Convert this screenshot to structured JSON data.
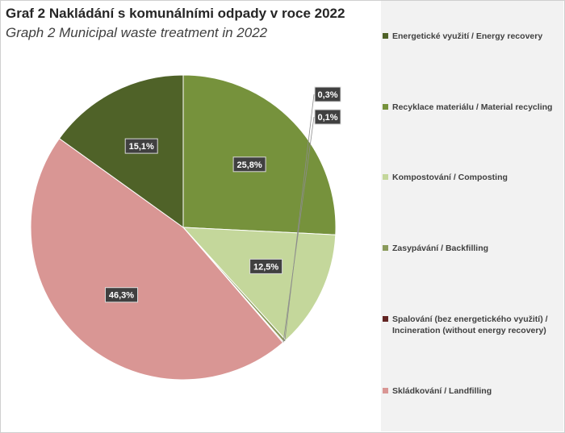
{
  "title": "Graf 2 Nakládání s komunálními odpady v roce 2022",
  "subtitle": "Graph 2 Municipal waste treatment  in 2022",
  "chart_data": {
    "type": "pie",
    "slices": [
      {
        "label": "Recyklace materiálu / Material recycling",
        "value": 25.8,
        "display": "25,8%",
        "color": "#76923c"
      },
      {
        "label": "Kompostování / Composting",
        "value": 12.5,
        "display": "12,5%",
        "color": "#c4d79b"
      },
      {
        "label": "Zasypávání / Backfilling",
        "value": 0.3,
        "display": "0,3%",
        "color": "#8a9a5b"
      },
      {
        "label": "Spalování (bez energetického využití) / Incineration (without energy recovery)",
        "value": 0.1,
        "display": "0,1%",
        "color": "#632523"
      },
      {
        "label": "Skládkování / Landfilling",
        "value": 46.3,
        "display": "46,3%",
        "color": "#d99694"
      },
      {
        "label": "Energetické využití / Energy recovery",
        "value": 15.1,
        "display": "15,1%",
        "color": "#4f6228"
      }
    ],
    "legend_order": [
      "Energetické využití / Energy recovery",
      "Recyklace materiálu / Material recycling",
      "Kompostování / Composting",
      "Zasypávání / Backfilling",
      "Spalování (bez energetického využití) / Incineration (without energy recovery)",
      "Skládkování / Landfilling"
    ],
    "legend_placement": "right",
    "data_label_style": "dark boxes with white text"
  }
}
